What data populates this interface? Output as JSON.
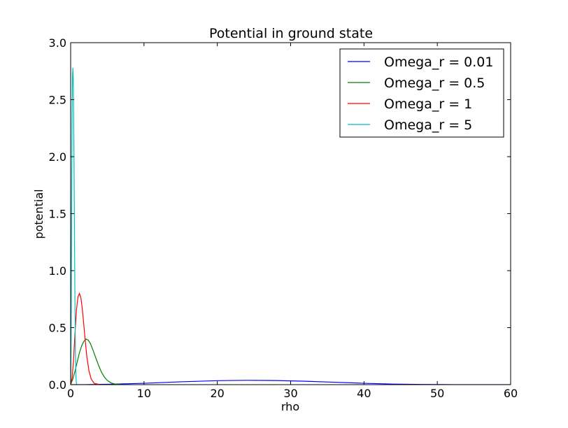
{
  "chart_data": {
    "type": "line",
    "title": "Potential in ground state",
    "xlabel": "rho",
    "ylabel": "potential",
    "xlim": [
      0,
      60
    ],
    "ylim": [
      0,
      3.0
    ],
    "xticks": [
      0,
      10,
      20,
      30,
      40,
      50,
      60
    ],
    "xtick_labels": [
      "0",
      "10",
      "20",
      "30",
      "40",
      "50",
      "60"
    ],
    "yticks": [
      0,
      0.5,
      1.0,
      1.5,
      2.0,
      2.5,
      3.0
    ],
    "ytick_labels": [
      "0.0",
      "0.5",
      "1.0",
      "1.5",
      "2.0",
      "2.5",
      "3.0"
    ],
    "grid": false,
    "legend_position": "top-right",
    "series": [
      {
        "name": "Omega_r = 0.01",
        "color": "#0000ff",
        "x": [
          0,
          2,
          5,
          10,
          15,
          20,
          24,
          28,
          32,
          36,
          40,
          44,
          48,
          52,
          56,
          60
        ],
        "y": [
          0,
          0.0005,
          0.003,
          0.012,
          0.025,
          0.035,
          0.038,
          0.036,
          0.03,
          0.021,
          0.012,
          0.005,
          0.0015,
          0.0003,
          0.0,
          0.0
        ]
      },
      {
        "name": "Omega_r = 0.5",
        "color": "#008000",
        "x": [
          0,
          0.3,
          0.6,
          0.9,
          1.2,
          1.5,
          1.8,
          2.1,
          2.4,
          2.7,
          3.0,
          3.4,
          3.8,
          4.2,
          4.6,
          5.0,
          5.5,
          6.0,
          7.0,
          8.0
        ],
        "y": [
          0,
          0.05,
          0.12,
          0.2,
          0.28,
          0.34,
          0.38,
          0.4,
          0.39,
          0.36,
          0.31,
          0.24,
          0.17,
          0.11,
          0.066,
          0.037,
          0.016,
          0.006,
          0.0008,
          0.0
        ]
      },
      {
        "name": "Omega_r = 1",
        "color": "#ff0000",
        "x": [
          0,
          0.2,
          0.4,
          0.6,
          0.8,
          1.0,
          1.2,
          1.4,
          1.6,
          1.8,
          2.0,
          2.2,
          2.5,
          2.8,
          3.2,
          4.0
        ],
        "y": [
          0,
          0.06,
          0.22,
          0.46,
          0.66,
          0.77,
          0.8,
          0.76,
          0.66,
          0.52,
          0.38,
          0.25,
          0.12,
          0.05,
          0.012,
          0.0
        ]
      },
      {
        "name": "Omega_r = 5",
        "color": "#00bfbf",
        "x": [
          0,
          0.05,
          0.1,
          0.15,
          0.2,
          0.25,
          0.3,
          0.35,
          0.4,
          0.45,
          0.5,
          0.55,
          0.6,
          0.65,
          0.7,
          0.75,
          0.8
        ],
        "y": [
          0,
          0.3,
          1.0,
          1.8,
          2.4,
          2.7,
          2.78,
          2.7,
          2.45,
          2.05,
          1.55,
          1.05,
          0.62,
          0.3,
          0.12,
          0.04,
          0.0
        ]
      }
    ]
  }
}
